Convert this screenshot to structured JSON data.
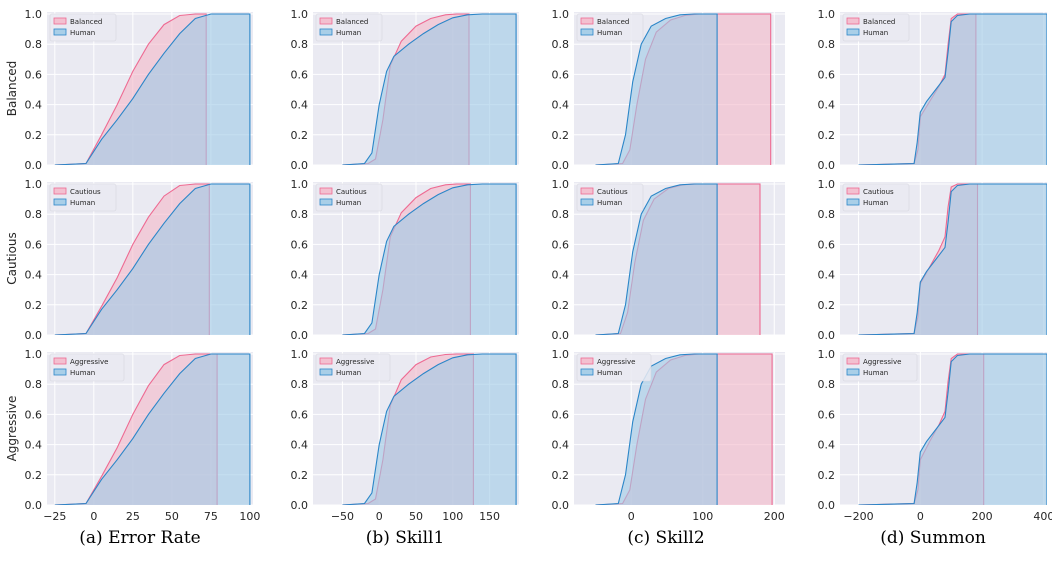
{
  "captions": [
    "(a) Error Rate",
    "(b) Skill1",
    "(c) Skill2",
    "(d) Summon"
  ],
  "colors": {
    "ai_fill": "#f4b9ca",
    "ai_line": "#ee6a92",
    "human_fill": "#9ecae6",
    "human_line": "#2b86c8",
    "panel_bg": "#eaeaf2",
    "grid": "#ffffff"
  },
  "chart_data": [
    {
      "type": "area",
      "row": "Balanced",
      "column": "Error Rate",
      "ylabel": "Balanced",
      "ylim": [
        0,
        1.0
      ],
      "xlim": [
        -30,
        102
      ],
      "xticks": [
        -25,
        0,
        25,
        50,
        75,
        100
      ],
      "yticks": [
        0.0,
        0.2,
        0.4,
        0.6,
        0.8,
        1.0
      ],
      "show_xticks": false,
      "series": [
        {
          "name": "Balanced",
          "x": [
            -25,
            -5,
            5,
            15,
            25,
            35,
            45,
            55,
            65,
            72,
            72
          ],
          "values": [
            0,
            0.01,
            0.2,
            0.4,
            0.62,
            0.8,
            0.93,
            0.99,
            1.0,
            1.0,
            0
          ]
        },
        {
          "name": "Human",
          "x": [
            -25,
            -5,
            5,
            15,
            25,
            35,
            45,
            55,
            65,
            75,
            100,
            100
          ],
          "values": [
            0,
            0.01,
            0.17,
            0.3,
            0.44,
            0.6,
            0.74,
            0.87,
            0.97,
            1.0,
            1.0,
            0
          ]
        }
      ]
    },
    {
      "type": "area",
      "row": "Balanced",
      "column": "Skill1",
      "ylabel": "",
      "ylim": [
        0,
        1.0
      ],
      "xlim": [
        -90,
        190
      ],
      "xticks": [
        -50,
        0,
        50,
        100,
        150
      ],
      "yticks": [
        0.0,
        0.2,
        0.4,
        0.6,
        0.8,
        1.0
      ],
      "show_xticks": false,
      "series": [
        {
          "name": "Balanced",
          "x": [
            -50,
            -15,
            -5,
            5,
            15,
            30,
            50,
            70,
            90,
            105,
            122,
            122
          ],
          "values": [
            0,
            0.01,
            0.04,
            0.3,
            0.66,
            0.82,
            0.92,
            0.97,
            0.995,
            1.0,
            1.0,
            0
          ]
        },
        {
          "name": "Human",
          "x": [
            -50,
            -20,
            -10,
            0,
            10,
            20,
            40,
            60,
            80,
            100,
            120,
            140,
            186,
            186
          ],
          "values": [
            0,
            0.01,
            0.08,
            0.4,
            0.62,
            0.72,
            0.8,
            0.87,
            0.93,
            0.975,
            0.995,
            1.0,
            1.0,
            0
          ]
        }
      ]
    },
    {
      "type": "area",
      "row": "Balanced",
      "column": "Skill2",
      "ylabel": "",
      "ylim": [
        0,
        1.0
      ],
      "xlim": [
        -80,
        215
      ],
      "xticks": [
        0,
        100,
        200
      ],
      "yticks": [
        0.0,
        0.2,
        0.4,
        0.6,
        0.8,
        1.0
      ],
      "show_xticks": false,
      "series": [
        {
          "name": "Balanced",
          "x": [
            -50,
            -12,
            -2,
            8,
            20,
            35,
            55,
            75,
            95,
            120,
            195,
            195
          ],
          "values": [
            0,
            0.01,
            0.1,
            0.4,
            0.7,
            0.88,
            0.96,
            0.99,
            1.0,
            1.0,
            1.0,
            0
          ]
        },
        {
          "name": "Human",
          "x": [
            -50,
            -18,
            -8,
            2,
            14,
            28,
            48,
            68,
            88,
            120,
            120
          ],
          "values": [
            0,
            0.01,
            0.2,
            0.55,
            0.8,
            0.92,
            0.97,
            0.995,
            1.0,
            1.0,
            0
          ]
        }
      ]
    },
    {
      "type": "area",
      "row": "Balanced",
      "column": "Summon",
      "ylabel": "",
      "ylim": [
        0,
        1.0
      ],
      "xlim": [
        -260,
        410
      ],
      "xticks": [
        -200,
        0,
        200,
        400
      ],
      "yticks": [
        0.0,
        0.2,
        0.4,
        0.6,
        0.8,
        1.0
      ],
      "show_xticks": false,
      "series": [
        {
          "name": "Balanced",
          "x": [
            -200,
            -20,
            -8,
            0,
            30,
            60,
            80,
            90,
            100,
            120,
            180,
            180
          ],
          "values": [
            0,
            0.01,
            0.1,
            0.32,
            0.42,
            0.52,
            0.6,
            0.8,
            0.97,
            1.0,
            1.0,
            0
          ]
        },
        {
          "name": "Human",
          "x": [
            -200,
            -20,
            -10,
            0,
            20,
            50,
            80,
            90,
            100,
            120,
            160,
            410,
            410
          ],
          "values": [
            0,
            0.01,
            0.15,
            0.35,
            0.42,
            0.5,
            0.58,
            0.75,
            0.95,
            0.99,
            1.0,
            1.0,
            0
          ]
        }
      ]
    },
    {
      "type": "area",
      "row": "Cautious",
      "column": "Error Rate",
      "ylabel": "Cautious",
      "ylim": [
        0,
        1.0
      ],
      "xlim": [
        -30,
        102
      ],
      "xticks": [
        -25,
        0,
        25,
        50,
        75,
        100
      ],
      "yticks": [
        0.0,
        0.2,
        0.4,
        0.6,
        0.8,
        1.0
      ],
      "show_xticks": false,
      "series": [
        {
          "name": "Cautious",
          "x": [
            -25,
            -5,
            5,
            15,
            25,
            35,
            45,
            55,
            65,
            74,
            74
          ],
          "values": [
            0,
            0.01,
            0.19,
            0.38,
            0.6,
            0.78,
            0.92,
            0.99,
            1.0,
            1.0,
            0
          ]
        },
        {
          "name": "Human",
          "x": [
            -25,
            -5,
            5,
            15,
            25,
            35,
            45,
            55,
            65,
            75,
            100,
            100
          ],
          "values": [
            0,
            0.01,
            0.17,
            0.3,
            0.44,
            0.6,
            0.74,
            0.87,
            0.97,
            1.0,
            1.0,
            0
          ]
        }
      ]
    },
    {
      "type": "area",
      "row": "Cautious",
      "column": "Skill1",
      "ylabel": "",
      "ylim": [
        0,
        1.0
      ],
      "xlim": [
        -90,
        190
      ],
      "xticks": [
        -50,
        0,
        50,
        100,
        150
      ],
      "yticks": [
        0.0,
        0.2,
        0.4,
        0.6,
        0.8,
        1.0
      ],
      "show_xticks": false,
      "series": [
        {
          "name": "Cautious",
          "x": [
            -50,
            -15,
            -5,
            5,
            15,
            30,
            50,
            70,
            90,
            105,
            124,
            124
          ],
          "values": [
            0,
            0.01,
            0.04,
            0.3,
            0.65,
            0.81,
            0.91,
            0.97,
            0.995,
            1.0,
            1.0,
            0
          ]
        },
        {
          "name": "Human",
          "x": [
            -50,
            -20,
            -10,
            0,
            10,
            20,
            40,
            60,
            80,
            100,
            120,
            140,
            186,
            186
          ],
          "values": [
            0,
            0.01,
            0.08,
            0.4,
            0.62,
            0.72,
            0.8,
            0.87,
            0.93,
            0.975,
            0.995,
            1.0,
            1.0,
            0
          ]
        }
      ]
    },
    {
      "type": "area",
      "row": "Cautious",
      "column": "Skill2",
      "ylabel": "",
      "ylim": [
        0,
        1.0
      ],
      "xlim": [
        -80,
        215
      ],
      "xticks": [
        0,
        100,
        200
      ],
      "yticks": [
        0.0,
        0.2,
        0.4,
        0.6,
        0.8,
        1.0
      ],
      "show_xticks": false,
      "series": [
        {
          "name": "Cautious",
          "x": [
            -50,
            -15,
            -5,
            5,
            17,
            32,
            52,
            72,
            92,
            120,
            180,
            180
          ],
          "values": [
            0,
            0.01,
            0.15,
            0.48,
            0.76,
            0.9,
            0.97,
            0.995,
            1.0,
            1.0,
            1.0,
            0
          ]
        },
        {
          "name": "Human",
          "x": [
            -50,
            -18,
            -8,
            2,
            14,
            28,
            48,
            68,
            88,
            120,
            120
          ],
          "values": [
            0,
            0.01,
            0.2,
            0.55,
            0.8,
            0.92,
            0.97,
            0.995,
            1.0,
            1.0,
            0
          ]
        }
      ]
    },
    {
      "type": "area",
      "row": "Cautious",
      "column": "Summon",
      "ylabel": "",
      "ylim": [
        0,
        1.0
      ],
      "xlim": [
        -260,
        410
      ],
      "xticks": [
        -200,
        0,
        200,
        400
      ],
      "yticks": [
        0.0,
        0.2,
        0.4,
        0.6,
        0.8,
        1.0
      ],
      "show_xticks": false,
      "series": [
        {
          "name": "Cautious",
          "x": [
            -200,
            -20,
            -8,
            0,
            30,
            60,
            80,
            90,
            100,
            120,
            185,
            185
          ],
          "values": [
            0,
            0.01,
            0.12,
            0.34,
            0.45,
            0.56,
            0.65,
            0.85,
            0.98,
            1.0,
            1.0,
            0
          ]
        },
        {
          "name": "Human",
          "x": [
            -200,
            -20,
            -10,
            0,
            20,
            50,
            80,
            90,
            100,
            120,
            160,
            410,
            410
          ],
          "values": [
            0,
            0.01,
            0.15,
            0.35,
            0.42,
            0.5,
            0.58,
            0.75,
            0.95,
            0.99,
            1.0,
            1.0,
            0
          ]
        }
      ]
    },
    {
      "type": "area",
      "row": "Aggressive",
      "column": "Error Rate",
      "ylabel": "Aggressive",
      "ylim": [
        0,
        1.0
      ],
      "xlim": [
        -30,
        102
      ],
      "xticks": [
        -25,
        0,
        25,
        50,
        75,
        100
      ],
      "yticks": [
        0.0,
        0.2,
        0.4,
        0.6,
        0.8,
        1.0
      ],
      "show_xticks": true,
      "series": [
        {
          "name": "Aggressive",
          "x": [
            -25,
            -5,
            5,
            15,
            25,
            35,
            45,
            55,
            65,
            79,
            79
          ],
          "values": [
            0,
            0.01,
            0.19,
            0.38,
            0.6,
            0.79,
            0.93,
            0.99,
            1.0,
            1.0,
            0
          ]
        },
        {
          "name": "Human",
          "x": [
            -25,
            -5,
            5,
            15,
            25,
            35,
            45,
            55,
            65,
            75,
            100,
            100
          ],
          "values": [
            0,
            0.01,
            0.17,
            0.3,
            0.44,
            0.6,
            0.74,
            0.87,
            0.97,
            1.0,
            1.0,
            0
          ]
        }
      ]
    },
    {
      "type": "area",
      "row": "Aggressive",
      "column": "Skill1",
      "ylabel": "",
      "ylim": [
        0,
        1.0
      ],
      "xlim": [
        -90,
        190
      ],
      "xticks": [
        -50,
        0,
        50,
        100,
        150
      ],
      "yticks": [
        0.0,
        0.2,
        0.4,
        0.6,
        0.8,
        1.0
      ],
      "show_xticks": true,
      "series": [
        {
          "name": "Aggressive",
          "x": [
            -50,
            -15,
            -5,
            5,
            15,
            30,
            50,
            70,
            90,
            105,
            128,
            128
          ],
          "values": [
            0,
            0.01,
            0.04,
            0.3,
            0.66,
            0.83,
            0.93,
            0.98,
            0.997,
            1.0,
            1.0,
            0
          ]
        },
        {
          "name": "Human",
          "x": [
            -50,
            -20,
            -10,
            0,
            10,
            20,
            40,
            60,
            80,
            100,
            120,
            140,
            186,
            186
          ],
          "values": [
            0,
            0.01,
            0.08,
            0.4,
            0.62,
            0.72,
            0.8,
            0.87,
            0.93,
            0.975,
            0.995,
            1.0,
            1.0,
            0
          ]
        }
      ]
    },
    {
      "type": "area",
      "row": "Aggressive",
      "column": "Skill2",
      "ylabel": "",
      "ylim": [
        0,
        1.0
      ],
      "xlim": [
        -80,
        215
      ],
      "xticks": [
        0,
        100,
        200
      ],
      "yticks": [
        0.0,
        0.2,
        0.4,
        0.6,
        0.8,
        1.0
      ],
      "show_xticks": true,
      "series": [
        {
          "name": "Aggressive",
          "x": [
            -50,
            -12,
            -2,
            8,
            20,
            35,
            55,
            75,
            95,
            120,
            197,
            197
          ],
          "values": [
            0,
            0.01,
            0.1,
            0.4,
            0.7,
            0.88,
            0.96,
            0.99,
            1.0,
            1.0,
            1.0,
            0
          ]
        },
        {
          "name": "Human",
          "x": [
            -50,
            -18,
            -8,
            2,
            14,
            28,
            48,
            68,
            88,
            120,
            120
          ],
          "values": [
            0,
            0.01,
            0.2,
            0.55,
            0.8,
            0.92,
            0.97,
            0.995,
            1.0,
            1.0,
            0
          ]
        }
      ]
    },
    {
      "type": "area",
      "row": "Aggressive",
      "column": "Summon",
      "ylabel": "",
      "ylim": [
        0,
        1.0
      ],
      "xlim": [
        -260,
        410
      ],
      "xticks": [
        -200,
        0,
        200,
        400
      ],
      "yticks": [
        0.0,
        0.2,
        0.4,
        0.6,
        0.8,
        1.0
      ],
      "show_xticks": true,
      "series": [
        {
          "name": "Aggressive",
          "x": [
            -200,
            -20,
            -8,
            0,
            30,
            60,
            80,
            90,
            100,
            120,
            205,
            205
          ],
          "values": [
            0,
            0.01,
            0.1,
            0.3,
            0.42,
            0.53,
            0.62,
            0.82,
            0.97,
            1.0,
            1.0,
            0
          ]
        },
        {
          "name": "Human",
          "x": [
            -200,
            -20,
            -10,
            0,
            20,
            50,
            80,
            90,
            100,
            120,
            160,
            410,
            410
          ],
          "values": [
            0,
            0.01,
            0.15,
            0.35,
            0.42,
            0.5,
            0.58,
            0.75,
            0.95,
            0.99,
            1.0,
            1.0,
            0
          ]
        }
      ]
    }
  ]
}
